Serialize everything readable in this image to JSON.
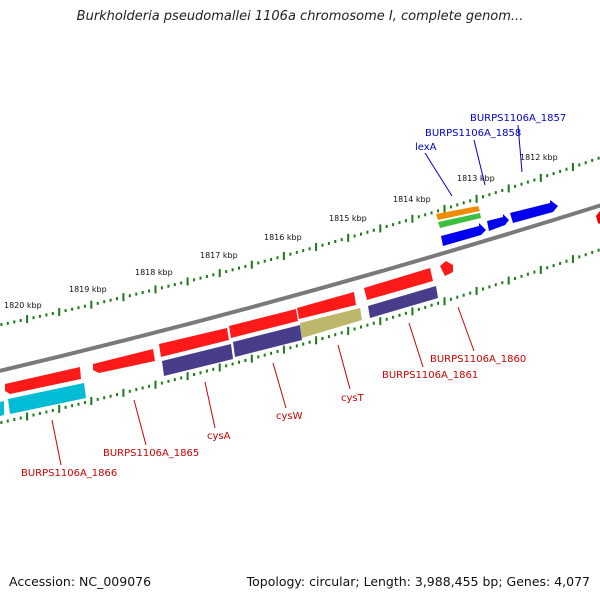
{
  "header": {
    "title": "Burkholderia pseudomallei 1106a chromosome I, complete genom..."
  },
  "footer": {
    "accession": "Accession: NC_009076",
    "summary": "Topology: circular; Length: 3,988,455 bp; Genes: 4,077"
  },
  "colors": {
    "backbone": "#808080",
    "tick": "#1a7a1a",
    "forward_gene": "#ff0000",
    "reverse_gene": "#4a3f8c",
    "plus_label": "#0000cc",
    "minus_label": "#cc0000"
  },
  "scale_labels": [
    "1812 kbp",
    "1813 kbp",
    "1814 kbp",
    "1815 kbp",
    "1816 kbp",
    "1817 kbp",
    "1818 kbp",
    "1819 kbp",
    "1820 kbp"
  ],
  "gene_labels": {
    "plus": [
      "BURPS1106A_1857",
      "BURPS1106A_1858",
      "lexA"
    ],
    "minus": [
      "BURPS1106A_1860",
      "BURPS1106A_1861",
      "cysT",
      "cysW",
      "cysA",
      "BURPS1106A_1865",
      "BURPS1106A_1866"
    ]
  }
}
